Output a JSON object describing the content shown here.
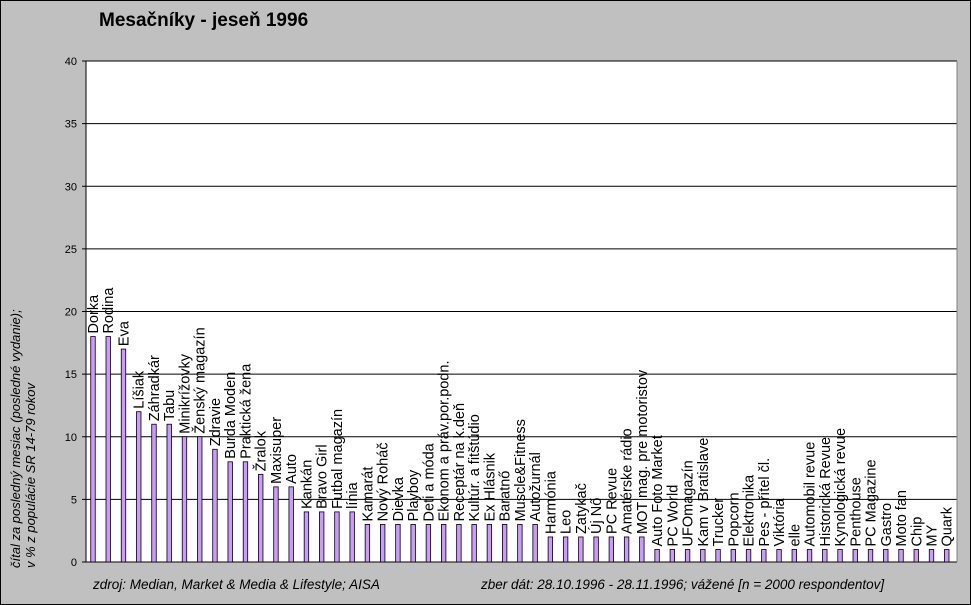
{
  "title": "Mesačníky - jeseň 1996",
  "ylabel_lines": [
    "čítal za posledný mesiac (posledné vydanie);",
    "v % z populácie SR 14-79 rokov"
  ],
  "footer_left": "zdroj: Median, Market & Media & Lifestyle; AISA",
  "footer_right": "zber dát: 28.10.1996 - 28.11.1996; vážené [n = 2000 respondentov]",
  "chart_data": {
    "type": "bar",
    "title": "Mesačníky - jeseň 1996",
    "ylabel": "čítal za posledný mesiac (posledné vydanie); v % z populácie SR 14-79 rokov",
    "xlabel": "",
    "ylim": [
      0,
      40
    ],
    "yticks": [
      0,
      5,
      10,
      15,
      20,
      25,
      30,
      35,
      40
    ],
    "grid": true,
    "bar_color": "#cc99ff",
    "categories": [
      "Dorka",
      "Rodina",
      "Eva",
      "Líšiak",
      "Záhradkár",
      "Tabu",
      "Minikrížovky",
      "Ženský magazín",
      "Zdravie",
      "Burda Moden",
      "Praktická žena",
      "Žralok",
      "Maxisuper",
      "Auto",
      "Kankán",
      "Bravo Girl",
      "Futbal magazín",
      "línia",
      "Kamarát",
      "Nový Roháč",
      "Dievka",
      "Playboy",
      "Deti a móda",
      "Ekonom a práv.por.podn.",
      "Receptár na k.deň",
      "Kultúr. a fitštúdio",
      "Ex Hlásnik",
      "Baratnő",
      "Muscle&Fitness",
      "Autožurnál",
      "Harmónia",
      "Leo",
      "Zatykač",
      "Új Nő",
      "PC Revue",
      "Amatérske rádio",
      "MOT mag. pre motoristov",
      "Auto Foto Market",
      "PC World",
      "UFOmagazín",
      "Kam v Bratislave",
      "Trucker",
      "Popcorn",
      "Elektronika",
      "Pes - přítel čl.",
      "Viktória",
      "elle",
      "Automobil revue",
      "Historická Revue",
      "Kynologická revue",
      "Penthouse",
      "PC Magazine",
      "Gastro",
      "Moto fan",
      "Chip",
      "MY",
      "Quark"
    ],
    "values": [
      18,
      18,
      17,
      12,
      11,
      11,
      10,
      10,
      9,
      8,
      8,
      7,
      6,
      6,
      4,
      4,
      4,
      4,
      3,
      3,
      3,
      3,
      3,
      3,
      3,
      3,
      3,
      3,
      3,
      3,
      2,
      2,
      2,
      2,
      2,
      2,
      2,
      1,
      1,
      1,
      1,
      1,
      1,
      1,
      1,
      1,
      1,
      1,
      1,
      1,
      1,
      1,
      1,
      1,
      1,
      1,
      1
    ]
  }
}
